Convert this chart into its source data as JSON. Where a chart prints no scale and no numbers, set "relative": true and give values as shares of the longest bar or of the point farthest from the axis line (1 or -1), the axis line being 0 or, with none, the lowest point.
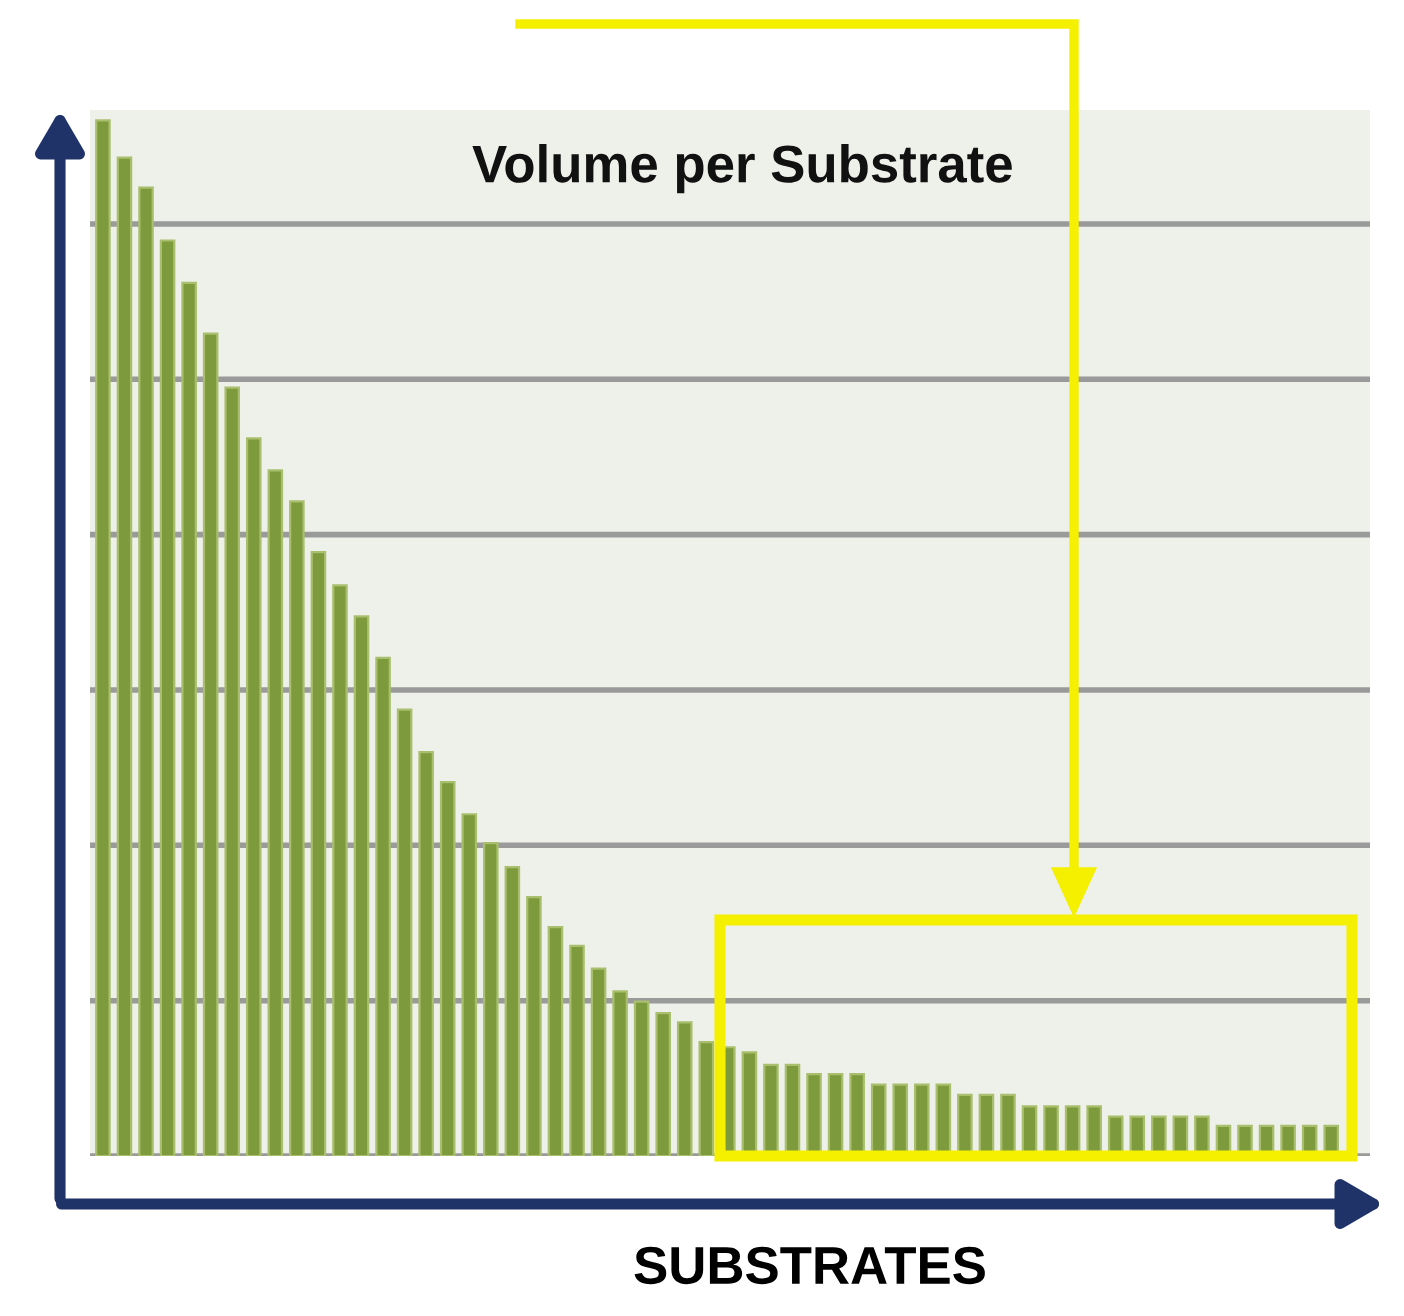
{
  "chart_data": {
    "type": "bar",
    "title": "Volume per Substrate",
    "xlabel": "SUBSTRATES",
    "relative": true,
    "grid": "y",
    "color": "#7d9a3c",
    "categories": [
      null,
      null,
      null,
      null,
      null,
      null,
      null,
      null,
      null,
      null,
      null,
      null,
      null,
      null,
      null,
      null,
      null,
      null,
      null,
      null,
      null,
      null,
      null,
      null,
      null,
      null,
      null,
      null,
      null,
      null,
      null,
      null,
      null,
      null,
      null,
      null,
      null,
      null,
      null,
      null,
      null,
      null,
      null,
      null,
      null,
      null,
      null,
      null,
      null,
      null,
      null,
      null,
      null,
      null,
      null,
      null,
      null,
      null
    ],
    "values": [
      1.0,
      0.964,
      0.935,
      0.884,
      0.843,
      0.794,
      0.742,
      0.693,
      0.662,
      0.632,
      0.583,
      0.551,
      0.521,
      0.481,
      0.431,
      0.39,
      0.361,
      0.33,
      0.302,
      0.279,
      0.25,
      0.221,
      0.203,
      0.181,
      0.159,
      0.149,
      0.138,
      0.129,
      0.11,
      0.105,
      0.1,
      0.088,
      0.088,
      0.079,
      0.079,
      0.079,
      0.069,
      0.069,
      0.069,
      0.069,
      0.059,
      0.059,
      0.059,
      0.048,
      0.048,
      0.048,
      0.048,
      0.038,
      0.038,
      0.038,
      0.038,
      0.038,
      0.029,
      0.029,
      0.029,
      0.029,
      0.029,
      0.029
    ]
  }
}
